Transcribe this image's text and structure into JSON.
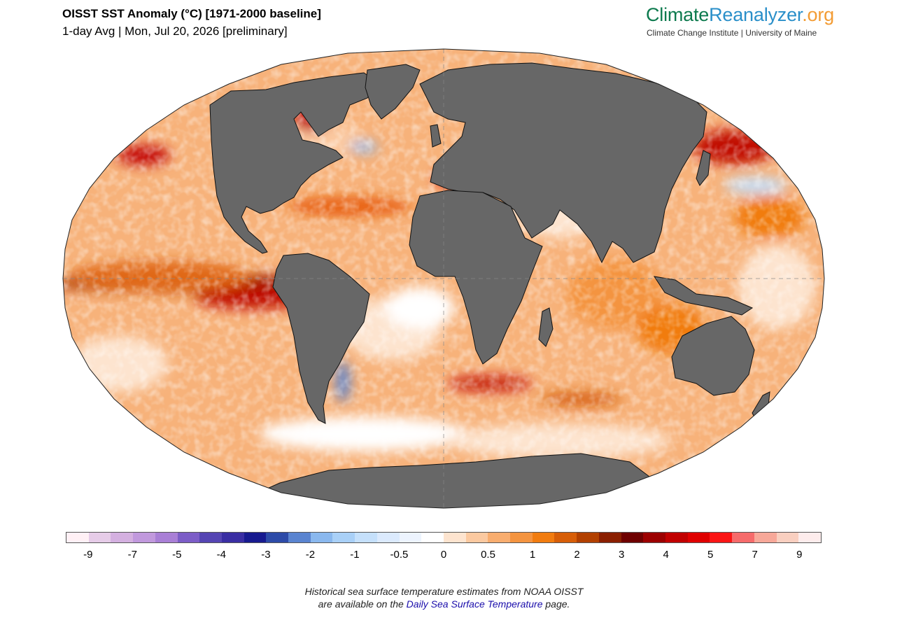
{
  "header": {
    "title": "OISST SST Anomaly (°C) [1971-2000 baseline]",
    "subtitle": "1-day Avg | Mon, Jul 20, 2026 [preliminary]"
  },
  "brand": {
    "part1": "Climate",
    "part2": "Reanalyzer",
    "part3": ".org",
    "tagline": "Climate Change Institute | University of Maine",
    "colors": {
      "climate": "#0d7a4e",
      "reanalyzer": "#2a8fc9",
      "org": "#f39c34"
    }
  },
  "map": {
    "projection": "Robinson",
    "land_color": "#676767",
    "ocean_fill": "anomaly colored"
  },
  "colorbar": {
    "colors": [
      "#fff0f5",
      "#e6cce8",
      "#d4b0e0",
      "#c199dd",
      "#a97fd6",
      "#7c5dc7",
      "#5545b3",
      "#3a2ea3",
      "#171a8f",
      "#2d4ba8",
      "#5a84d0",
      "#8ab8ee",
      "#a9d0f7",
      "#c5e0fb",
      "#dbeafd",
      "#edf4fe",
      "#ffffff",
      "#fde4cf",
      "#fbc9a0",
      "#f8ad6f",
      "#f49440",
      "#f17c10",
      "#d75e08",
      "#b24000",
      "#8a1f00",
      "#6e0000",
      "#9c0000",
      "#c10000",
      "#df0000",
      "#fb1515",
      "#f66b6b",
      "#f7a899",
      "#f9cfc0",
      "#fdecec"
    ],
    "tick_labels": [
      "-9",
      "-7",
      "-5",
      "-4",
      "-3",
      "-2",
      "-1",
      "-0.5",
      "0",
      "0.5",
      "1",
      "2",
      "3",
      "4",
      "5",
      "7",
      "9"
    ]
  },
  "footer": {
    "line1": "Historical sea surface temperature estimates from NOAA OISST",
    "line2_before": "are available on the ",
    "link": "Daily Sea Surface Temperature",
    "line2_after": " page."
  }
}
